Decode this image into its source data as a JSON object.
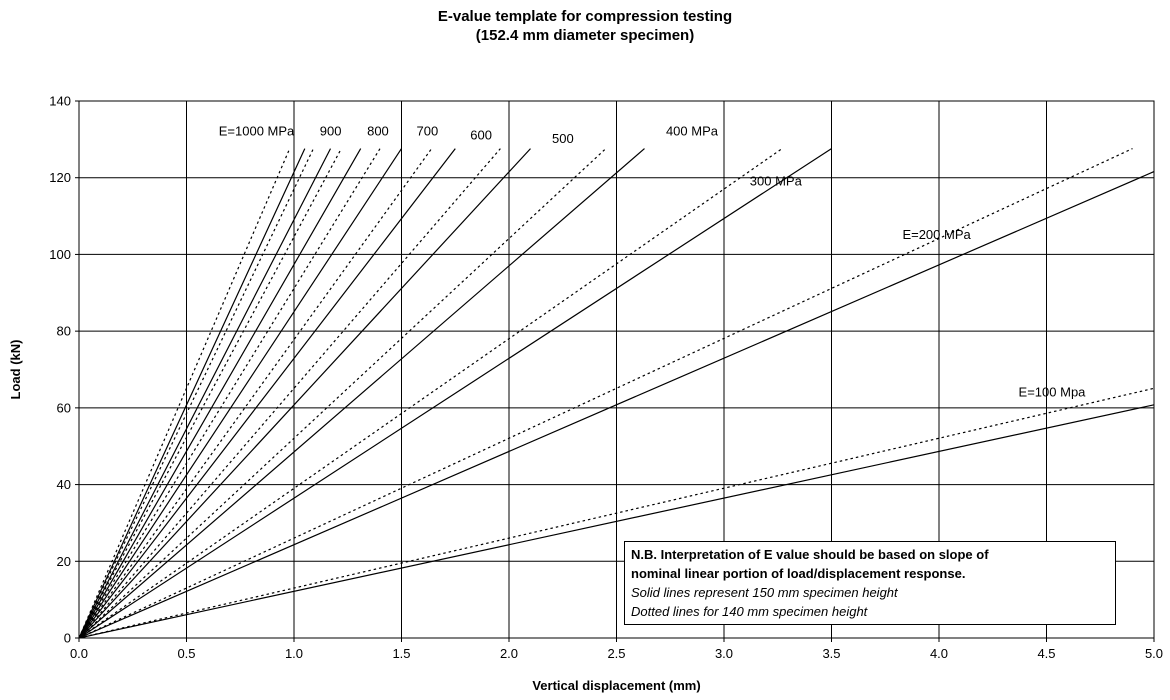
{
  "chart_data": {
    "type": "line",
    "title": "E-value template for compression testing",
    "subtitle": "(152.4 mm diameter specimen)",
    "xlabel": "Vertical displacement (mm)",
    "ylabel": "Load (kN)",
    "xlim": [
      0,
      5
    ],
    "ylim": [
      0,
      140
    ],
    "x_ticks": [
      "0.0",
      "0.5",
      "1.0",
      "1.5",
      "2.0",
      "2.5",
      "3.0",
      "3.5",
      "4.0",
      "4.5",
      "5.0"
    ],
    "y_ticks": [
      "0",
      "20",
      "40",
      "60",
      "80",
      "100",
      "120",
      "140"
    ],
    "grid": true,
    "series": [
      {
        "E": 1000,
        "style": "solid",
        "x": [
          0,
          1.05
        ],
        "y": [
          0,
          127.6
        ]
      },
      {
        "E": 900,
        "style": "solid",
        "x": [
          0,
          1.17
        ],
        "y": [
          0,
          127.6
        ]
      },
      {
        "E": 800,
        "style": "solid",
        "x": [
          0,
          1.31
        ],
        "y": [
          0,
          127.6
        ]
      },
      {
        "E": 700,
        "style": "solid",
        "x": [
          0,
          1.5
        ],
        "y": [
          0,
          127.6
        ]
      },
      {
        "E": 600,
        "style": "solid",
        "x": [
          0,
          1.75
        ],
        "y": [
          0,
          127.6
        ]
      },
      {
        "E": 500,
        "style": "solid",
        "x": [
          0,
          2.1
        ],
        "y": [
          0,
          127.6
        ]
      },
      {
        "E": 400,
        "style": "solid",
        "x": [
          0,
          2.63
        ],
        "y": [
          0,
          127.6
        ]
      },
      {
        "E": 300,
        "style": "solid",
        "x": [
          0,
          3.5
        ],
        "y": [
          0,
          127.6
        ]
      },
      {
        "E": 200,
        "style": "solid",
        "x": [
          0,
          5.0
        ],
        "y": [
          0,
          121.6
        ]
      },
      {
        "E": 100,
        "style": "solid",
        "x": [
          0,
          5.0
        ],
        "y": [
          0,
          60.8
        ]
      },
      {
        "E": 1000,
        "style": "dotted",
        "x": [
          0,
          0.98
        ],
        "y": [
          0,
          127.6
        ]
      },
      {
        "E": 900,
        "style": "dotted",
        "x": [
          0,
          1.09
        ],
        "y": [
          0,
          127.6
        ]
      },
      {
        "E": 800,
        "style": "dotted",
        "x": [
          0,
          1.22
        ],
        "y": [
          0,
          127.6
        ]
      },
      {
        "E": 700,
        "style": "dotted",
        "x": [
          0,
          1.4
        ],
        "y": [
          0,
          127.6
        ]
      },
      {
        "E": 600,
        "style": "dotted",
        "x": [
          0,
          1.64
        ],
        "y": [
          0,
          127.6
        ]
      },
      {
        "E": 500,
        "style": "dotted",
        "x": [
          0,
          1.96
        ],
        "y": [
          0,
          127.6
        ]
      },
      {
        "E": 400,
        "style": "dotted",
        "x": [
          0,
          2.45
        ],
        "y": [
          0,
          127.6
        ]
      },
      {
        "E": 300,
        "style": "dotted",
        "x": [
          0,
          3.27
        ],
        "y": [
          0,
          127.6
        ]
      },
      {
        "E": 200,
        "style": "dotted",
        "x": [
          0,
          4.9
        ],
        "y": [
          0,
          127.6
        ]
      },
      {
        "E": 100,
        "style": "dotted",
        "x": [
          0,
          5.0
        ],
        "y": [
          0,
          65.1
        ]
      }
    ],
    "annotations": [
      {
        "text": "E=1000 MPa",
        "x": 0.65,
        "y": 131
      },
      {
        "text": "900",
        "x": 1.12,
        "y": 131
      },
      {
        "text": "800",
        "x": 1.34,
        "y": 131
      },
      {
        "text": "700",
        "x": 1.57,
        "y": 131
      },
      {
        "text": "600",
        "x": 1.82,
        "y": 130
      },
      {
        "text": "500",
        "x": 2.2,
        "y": 129
      },
      {
        "text": "400 MPa",
        "x": 2.73,
        "y": 131
      },
      {
        "text": "300 MPa",
        "x": 3.12,
        "y": 118
      },
      {
        "text": "E=200 MPa",
        "x": 3.83,
        "y": 104
      },
      {
        "text": "E=100 Mpa",
        "x": 4.37,
        "y": 63
      }
    ],
    "note": {
      "bold_line1": "N.B. Interpretation of E value should be based on slope of",
      "bold_line2": "nominal linear portion of load/displacement response.",
      "italic_line1": "Solid lines represent 150 mm specimen height",
      "italic_line2": "Dotted lines for 140 mm specimen height"
    }
  }
}
